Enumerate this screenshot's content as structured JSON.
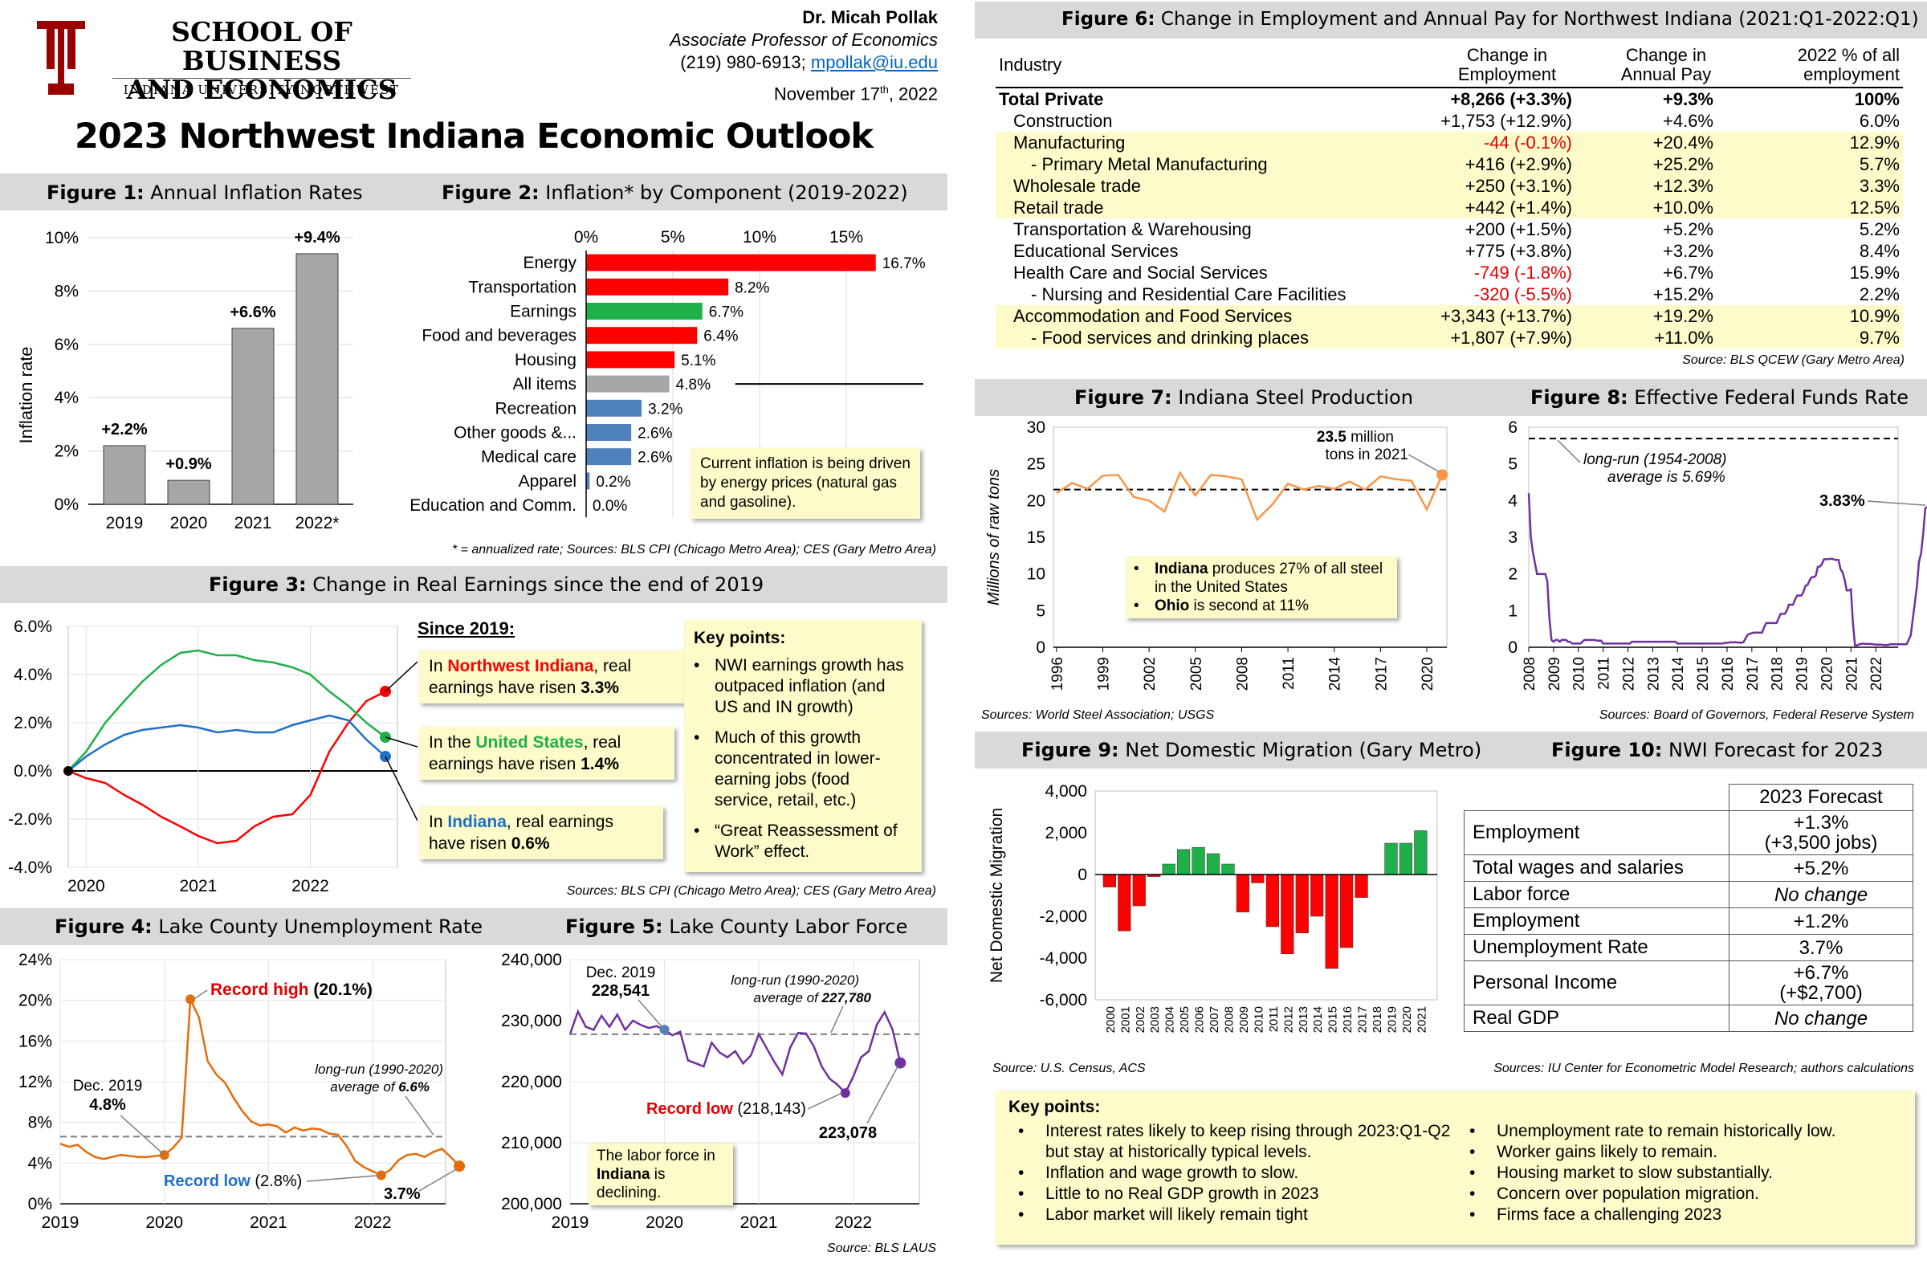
{
  "header": {
    "school_line1": "SCHOOL OF BUSINESS",
    "school_line2": "AND ECONOMICS",
    "school_line3": "INDIANA UNIVERSITY NORTHWEST",
    "author": "Dr. Micah Pollak",
    "author_title": "Associate Professor of Economics",
    "phone": "(219) 980-6913;",
    "email": "mpollak@iu.edu",
    "date_day": "November 17",
    "date_sup": "th",
    "date_year": ", 2022",
    "main_title": "2023 Northwest Indiana Economic Outlook",
    "brand_color": "#990000"
  },
  "fig1": {
    "label": "Figure 1:",
    "title": "Annual Inflation Rates",
    "ylabel": "Inflation rate",
    "yticks": [
      "0%",
      "2%",
      "4%",
      "6%",
      "8%",
      "10%"
    ]
  },
  "fig2": {
    "label": "Figure 2:",
    "title": "Inflation* by Component (2019-2022)",
    "xticks": [
      "0%",
      "5%",
      "10%",
      "15%"
    ],
    "callout": "Current inflation is being driven by energy prices (natural gas and gasoline).",
    "footnote": "* = annualized rate; Sources: BLS CPI  (Chicago Metro Area); CES (Gary Metro Area)"
  },
  "fig3": {
    "label": "Figure 3:",
    "title": "Change in Real Earnings since the end of 2019",
    "yticks": [
      "6.0%",
      "4.0%",
      "2.0%",
      "0.0%",
      "-2.0%",
      "-4.0%"
    ],
    "xticks": [
      "2020",
      "2021",
      "2022"
    ],
    "since_heading": "Since 2019:",
    "box_nwi_pre": "In ",
    "box_nwi_place": "Northwest Indiana",
    "box_nwi_mid": ", real earnings have risen ",
    "box_nwi_val": "3.3%",
    "box_us_pre": "In the ",
    "box_us_place": "United States",
    "box_us_mid": ", real earnings have risen ",
    "box_us_val": "1.4%",
    "box_in_pre": "In ",
    "box_in_place": "Indiana",
    "box_in_mid": ", real earnings have risen ",
    "box_in_val": "0.6%",
    "key_title": "Key points:",
    "key1": "NWI earnings growth has outpaced inflation (and US and IN growth)",
    "key2": "Much of this growth concentrated in lower-earning jobs (food service, retail, etc.)",
    "key3": "“Great Reassessment of Work” effect.",
    "source": "Sources: BLS CPI  (Chicago Metro Area); CES (Gary Metro Area)"
  },
  "fig4": {
    "label": "Figure 4:",
    "title": "Lake County Unemployment Rate",
    "yticks": [
      "24%",
      "20%",
      "16%",
      "12%",
      "8%",
      "4%",
      "0%"
    ],
    "xticks": [
      "2019",
      "2020",
      "2021",
      "2022"
    ],
    "ann_high_a": "Record high",
    "ann_high_b": " (20.1%)",
    "ann_dec_a": "Dec. 2019",
    "ann_dec_b": "4.8%",
    "ann_low_a": "Record low",
    "ann_low_b": " (2.8%)",
    "ann_lr_a": "long-run (1990-2020)",
    "ann_lr_b": "average of ",
    "ann_lr_c": "6.6%",
    "ann_last": "3.7%"
  },
  "fig5": {
    "label": "Figure 5:",
    "title": "Lake County Labor Force",
    "yticks": [
      "240,000",
      "230,000",
      "220,000",
      "210,000",
      "200,000"
    ],
    "xticks": [
      "2019",
      "2020",
      "2021",
      "2022"
    ],
    "ann_dec_a": "Dec. 2019",
    "ann_dec_b": "228,541",
    "ann_lr_a": "long-run (1990-2020)",
    "ann_lr_b": "average of ",
    "ann_lr_c": "227,780",
    "ann_low_a": "Record low",
    "ann_low_b": " (218,143)",
    "ann_last": "223,078",
    "callout_a": "The labor force in",
    "callout_b": "Indiana",
    "callout_c": " is declining.",
    "source": "Source: BLS LAUS"
  },
  "fig6": {
    "label": "Figure 6:",
    "title": "Change in Employment and Annual Pay for Northwest Indiana (2021:Q1-2022:Q1)",
    "h_industry": "Industry",
    "h_emp1": "Change in",
    "h_emp2": "Employment",
    "h_pay1": "Change in",
    "h_pay2": "Annual Pay",
    "h_pct1": "2022 % of all",
    "h_pct2": "employment",
    "rows": [
      {
        "name": "Total Private",
        "emp": "+8,266 (+3.3%)",
        "pay": "+9.3%",
        "pct": "100%"
      },
      {
        "name": "Construction",
        "emp": "+1,753 (+12.9%)",
        "pay": "+4.6%",
        "pct": "6.0%"
      },
      {
        "name": "Manufacturing",
        "emp": "-44 (-0.1%)",
        "pay": "+20.4%",
        "pct": "12.9%"
      },
      {
        "name": "- Primary Metal Manufacturing",
        "emp": "+416 (+2.9%)",
        "pay": "+25.2%",
        "pct": "5.7%"
      },
      {
        "name": "Wholesale trade",
        "emp": "+250 (+3.1%)",
        "pay": "+12.3%",
        "pct": "3.3%"
      },
      {
        "name": "Retail trade",
        "emp": "+442 (+1.4%)",
        "pay": "+10.0%",
        "pct": "12.5%"
      },
      {
        "name": "Transportation & Warehousing",
        "emp": "+200 (+1.5%)",
        "pay": "+5.2%",
        "pct": "5.2%"
      },
      {
        "name": "Educational Services",
        "emp": "+775 (+3.8%)",
        "pay": "+3.2%",
        "pct": "8.4%"
      },
      {
        "name": "Health Care and Social Services",
        "emp": "-749 (-1.8%)",
        "pay": "+6.7%",
        "pct": "15.9%"
      },
      {
        "name": "- Nursing and Residential Care Facilities",
        "emp": "-320 (-5.5%)",
        "pay": "+15.2%",
        "pct": "2.2%"
      },
      {
        "name": "Accommodation and Food Services",
        "emp": "+3,343 (+13.7%)",
        "pay": "+19.2%",
        "pct": "10.9%"
      },
      {
        "name": "- Food services and drinking places",
        "emp": "+1,807 (+7.9%)",
        "pay": "+11.0%",
        "pct": "9.7%"
      }
    ],
    "source": "Source: BLS QCEW (Gary Metro Area)"
  },
  "fig7": {
    "label": "Figure 7:",
    "title": "Indiana Steel Production",
    "ylabel": "Millions of raw tons",
    "yticks": [
      "30",
      "25",
      "20",
      "15",
      "10",
      "5",
      "0"
    ],
    "xticks": [
      "1996",
      "1999",
      "2002",
      "2005",
      "2008",
      "2011",
      "2014",
      "2017",
      "2020"
    ],
    "ann_a": "23.5",
    "ann_b": " million",
    "ann_c": "tons in 2021",
    "bullet1_a": "Indiana",
    "bullet1_b": " produces 27% of all steel in the United States",
    "bullet2_a": "Ohio",
    "bullet2_b": " is second at 11%",
    "source": "Sources: World Steel Association; USGS"
  },
  "fig8": {
    "label": "Figure 8:",
    "title": "Effective Federal Funds Rate",
    "yticks": [
      "6",
      "5",
      "4",
      "3",
      "2",
      "1",
      "0"
    ],
    "xticks": [
      "2008",
      "2009",
      "2010",
      "2011",
      "2012",
      "2013",
      "2014",
      "2015",
      "2016",
      "2017",
      "2018",
      "2019",
      "2020",
      "2021",
      "2022"
    ],
    "ann_lr_a": "long-run (1954-2008)",
    "ann_lr_b": "average is 5.69%",
    "ann_last": "3.83%",
    "source": "Sources:  Board of Governors, Federal Reserve System"
  },
  "fig9": {
    "label": "Figure 9:",
    "title": "Net Domestic Migration (Gary Metro)",
    "ylabel": "Net Domestic Migration",
    "yticks": [
      "4,000",
      "2,000",
      "0",
      "-2,000",
      "-4,000",
      "-6,000"
    ],
    "source": "Source:  U.S. Census, ACS"
  },
  "fig10": {
    "label": "Figure 10:",
    "title": "NWI Forecast for 2023",
    "col_header": "2023 Forecast",
    "rows": [
      {
        "name": "Employment",
        "val": "+1.3%",
        "val2": "(+3,500 jobs)"
      },
      {
        "name": "Total wages and salaries",
        "val": "+5.2%",
        "val2": ""
      },
      {
        "name": "Labor force",
        "val": "No change",
        "val2": ""
      },
      {
        "name": "Employment",
        "val": "+1.2%",
        "val2": ""
      },
      {
        "name": "Unemployment Rate",
        "val": "3.7%",
        "val2": ""
      },
      {
        "name": "Personal Income",
        "val": "+6.7%",
        "val2": "(+$2,700)"
      },
      {
        "name": "Real GDP",
        "val": "No change",
        "val2": ""
      }
    ],
    "source": "Sources:  IU Center for Econometric Model Research; authors calculations"
  },
  "keypoints": {
    "title": "Key points:",
    "left": [
      "Interest rates likely to keep rising through 2023:Q1-Q2 but stay at historically typical levels.",
      "Inflation and wage growth to slow.",
      "Little to no Real GDP growth in 2023",
      "Labor market will likely remain tight"
    ],
    "right": [
      "Unemployment rate to remain historically low.",
      "Worker gains likely to remain.",
      "Housing market to slow substantially.",
      "Concern over population migration.",
      "Firms face a challenging 2023"
    ]
  },
  "chart_data": [
    {
      "id": "fig1",
      "type": "bar",
      "categories": [
        "2019",
        "2020",
        "2021",
        "2022*"
      ],
      "values": [
        2.2,
        0.9,
        6.6,
        9.4
      ],
      "labels": [
        "+2.2%",
        "+0.9%",
        "+6.6%",
        "+9.4%"
      ],
      "ylabel": "Inflation rate",
      "ylim": [
        0,
        10
      ],
      "colors": {
        "bar": "#a6a6a6"
      }
    },
    {
      "id": "fig2",
      "type": "bar",
      "orientation": "horizontal",
      "categories": [
        "Energy",
        "Transportation",
        "Earnings",
        "Food and beverages",
        "Housing",
        "All items",
        "Recreation",
        "Other goods &...",
        "Medical care",
        "Apparel",
        "Education and Comm."
      ],
      "values": [
        16.7,
        8.2,
        6.7,
        6.4,
        5.1,
        4.8,
        3.2,
        2.6,
        2.6,
        0.2,
        0.0
      ],
      "labels": [
        "16.7%",
        "8.2%",
        "6.7%",
        "6.4%",
        "5.1%",
        "4.8%",
        "3.2%",
        "2.6%",
        "2.6%",
        "0.2%",
        "0.0%"
      ],
      "colors": [
        "#ff0000",
        "#ff0000",
        "#1fb04a",
        "#ff0000",
        "#ff0000",
        "#a6a6a6",
        "#4f81bd",
        "#4f81bd",
        "#4f81bd",
        "#4f81bd",
        "#4f81bd"
      ],
      "xlim": [
        0,
        18
      ]
    },
    {
      "id": "fig3",
      "type": "line",
      "x": [
        2019.92,
        2020.08,
        2020.25,
        2020.42,
        2020.58,
        2020.75,
        2020.92,
        2021.08,
        2021.25,
        2021.42,
        2021.58,
        2021.75,
        2021.92,
        2022.08,
        2022.25,
        2022.42,
        2022.58,
        2022.75
      ],
      "series": [
        {
          "name": "Northwest Indiana",
          "color": "#ff0000",
          "values": [
            0.0,
            -0.3,
            -0.5,
            -1.0,
            -1.4,
            -1.9,
            -2.3,
            -2.7,
            -3.0,
            -2.9,
            -2.3,
            -1.9,
            -1.8,
            -1.0,
            0.8,
            2.0,
            2.9,
            3.3
          ]
        },
        {
          "name": "United States",
          "color": "#1fb04a",
          "values": [
            0.0,
            0.8,
            2.0,
            2.9,
            3.7,
            4.4,
            4.9,
            5.0,
            4.8,
            4.8,
            4.6,
            4.5,
            4.3,
            4.0,
            3.3,
            2.7,
            2.0,
            1.4
          ]
        },
        {
          "name": "Indiana",
          "color": "#1f6fc8",
          "values": [
            0.0,
            0.6,
            1.1,
            1.5,
            1.7,
            1.8,
            1.9,
            1.8,
            1.6,
            1.7,
            1.6,
            1.6,
            1.9,
            2.1,
            2.3,
            2.1,
            1.3,
            0.6
          ]
        }
      ],
      "ylim": [
        -4,
        6
      ]
    },
    {
      "id": "fig4",
      "type": "line",
      "x_start": 2019.0,
      "x_step": 0.0833,
      "values": [
        5.9,
        5.6,
        5.8,
        5.1,
        4.6,
        4.4,
        4.6,
        4.8,
        4.7,
        4.6,
        4.6,
        4.7,
        4.8,
        5.5,
        6.5,
        20.1,
        18.3,
        14.0,
        12.7,
        11.9,
        10.4,
        9.1,
        8.1,
        7.7,
        7.8,
        7.6,
        7.0,
        7.5,
        7.2,
        7.4,
        7.3,
        6.9,
        6.8,
        5.7,
        4.2,
        3.6,
        3.2,
        2.8,
        3.3,
        4.3,
        4.8,
        4.9,
        4.6,
        5.1,
        5.4,
        4.6,
        3.7
      ],
      "long_run_avg": 6.6,
      "ylim": [
        0,
        24
      ],
      "color": "#e46c0a"
    },
    {
      "id": "fig5",
      "type": "line",
      "x_start": 2019.0,
      "x_step": 0.0833,
      "values": [
        227800,
        231500,
        229000,
        228500,
        230800,
        229000,
        231000,
        228500,
        230000,
        229300,
        228800,
        229100,
        228541,
        227600,
        228200,
        223500,
        223000,
        222500,
        226400,
        224800,
        224000,
        225000,
        223000,
        224300,
        227800,
        225500,
        223200,
        221200,
        225600,
        228000,
        227900,
        225800,
        222500,
        220500,
        219500,
        218143,
        220800,
        224000,
        225000,
        229300,
        231400,
        228600,
        223078
      ],
      "long_run_avg": 227780,
      "ylim": [
        200000,
        240000
      ],
      "color": "#7030a0"
    },
    {
      "id": "fig7",
      "type": "line",
      "x": [
        1996,
        1997,
        1998,
        1999,
        2000,
        2001,
        2002,
        2003,
        2004,
        2005,
        2006,
        2007,
        2008,
        2009,
        2010,
        2011,
        2012,
        2013,
        2014,
        2015,
        2016,
        2017,
        2018,
        2019,
        2020,
        2021
      ],
      "values": [
        21.0,
        22.4,
        21.6,
        23.4,
        23.5,
        20.5,
        20.0,
        18.5,
        23.8,
        20.7,
        23.5,
        23.3,
        22.9,
        17.4,
        19.5,
        22.3,
        21.5,
        22.0,
        21.6,
        22.6,
        21.5,
        23.3,
        22.9,
        22.7,
        18.8,
        23.5
      ],
      "average": 21.5,
      "ylim": [
        0,
        30
      ],
      "color": "#f79646"
    },
    {
      "id": "fig8",
      "type": "line",
      "x_start": 2008.0,
      "x_step": 0.0833,
      "values": [
        4.2,
        3.0,
        2.6,
        2.3,
        2.0,
        2.0,
        2.0,
        2.0,
        2.0,
        1.8,
        0.8,
        0.2,
        0.15,
        0.2,
        0.2,
        0.15,
        0.2,
        0.2,
        0.2,
        0.15,
        0.15,
        0.1,
        0.1,
        0.1,
        0.1,
        0.1,
        0.15,
        0.2,
        0.2,
        0.2,
        0.2,
        0.2,
        0.2,
        0.18,
        0.18,
        0.18,
        0.1,
        0.1,
        0.1,
        0.1,
        0.1,
        0.1,
        0.1,
        0.1,
        0.1,
        0.1,
        0.1,
        0.1,
        0.1,
        0.1,
        0.15,
        0.15,
        0.15,
        0.15,
        0.15,
        0.15,
        0.15,
        0.15,
        0.15,
        0.15,
        0.15,
        0.15,
        0.15,
        0.15,
        0.15,
        0.15,
        0.15,
        0.15,
        0.15,
        0.15,
        0.15,
        0.15,
        0.1,
        0.1,
        0.1,
        0.1,
        0.1,
        0.1,
        0.1,
        0.1,
        0.1,
        0.1,
        0.1,
        0.1,
        0.1,
        0.1,
        0.1,
        0.1,
        0.1,
        0.1,
        0.1,
        0.1,
        0.1,
        0.1,
        0.1,
        0.12,
        0.12,
        0.13,
        0.14,
        0.13,
        0.14,
        0.13,
        0.13,
        0.12,
        0.14,
        0.24,
        0.34,
        0.37,
        0.38,
        0.4,
        0.4,
        0.4,
        0.4,
        0.4,
        0.55,
        0.66,
        0.66,
        0.66,
        0.66,
        0.66,
        0.66,
        0.79,
        0.91,
        0.91,
        0.91,
        1.0,
        1.16,
        1.16,
        1.16,
        1.3,
        1.41,
        1.41,
        1.41,
        1.5,
        1.68,
        1.7,
        1.82,
        1.91,
        1.91,
        1.95,
        2.19,
        2.2,
        2.27,
        2.4,
        2.4,
        2.4,
        2.41,
        2.41,
        2.39,
        2.38,
        2.38,
        2.13,
        2.04,
        1.83,
        1.55,
        1.55,
        1.58,
        0.65,
        0.05,
        0.05,
        0.08,
        0.09,
        0.1,
        0.09,
        0.09,
        0.09,
        0.09,
        0.08,
        0.07,
        0.07,
        0.07,
        0.07,
        0.06,
        0.06,
        0.06,
        0.08,
        0.08,
        0.08,
        0.08,
        0.08,
        0.08,
        0.08,
        0.08,
        0.08,
        0.2,
        0.33,
        0.77,
        1.21,
        1.68,
        2.33,
        2.56,
        3.08,
        3.78,
        3.83
      ],
      "long_run_avg": 5.69,
      "ylim": [
        0,
        6
      ],
      "color": "#7030a0"
    },
    {
      "id": "fig9",
      "type": "bar",
      "categories": [
        "2000",
        "2001",
        "2002",
        "2003",
        "2004",
        "2005",
        "2006",
        "2007",
        "2008",
        "2009",
        "2010",
        "2011",
        "2012",
        "2013",
        "2014",
        "2015",
        "2016",
        "2017",
        "2018",
        "2019",
        "2020",
        "2021"
      ],
      "values": [
        -600,
        -2700,
        -1500,
        -100,
        500,
        1200,
        1300,
        1000,
        500,
        -1800,
        -400,
        -2500,
        -3800,
        -2800,
        -2000,
        -4500,
        -3500,
        -1100,
        0,
        1500,
        1500,
        2100
      ],
      "ylim": [
        -6000,
        4000
      ],
      "colors": {
        "positive": "#1fb04a",
        "negative": "#ff0000"
      }
    }
  ]
}
